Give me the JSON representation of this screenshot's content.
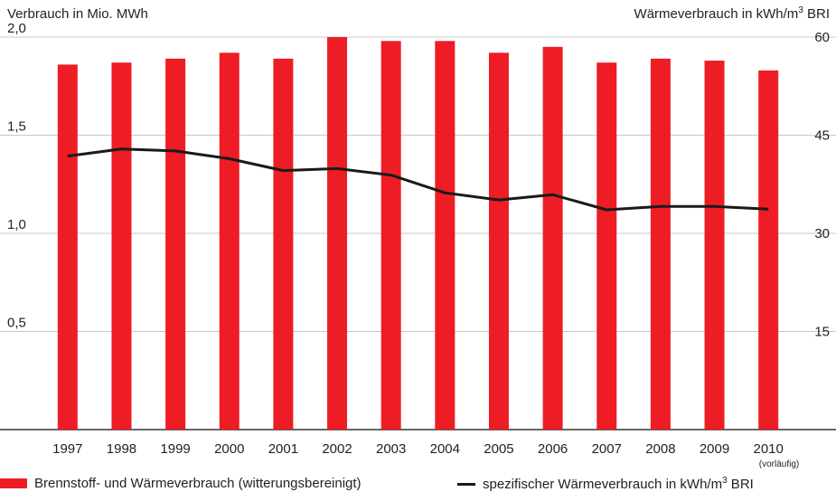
{
  "chart_data": {
    "type": "bar+line",
    "left_axis_title": "Verbrauch in Mio. MWh",
    "right_axis_title_main": "Wärmeverbrauch in kWh/m",
    "right_axis_title_sup": "3",
    "right_axis_title_end": " BRI",
    "categories": [
      "1997",
      "1998",
      "1999",
      "2000",
      "2001",
      "2002",
      "2003",
      "2004",
      "2005",
      "2006",
      "2007",
      "2008",
      "2009",
      "2010"
    ],
    "last_category_note": "(vorläufig)",
    "left_ylim": [
      0,
      2.0
    ],
    "right_ylim": [
      0,
      60
    ],
    "left_ticks": [
      {
        "v": 0.5,
        "label": "0,5"
      },
      {
        "v": 1.0,
        "label": "1,0"
      },
      {
        "v": 1.5,
        "label": "1,5"
      },
      {
        "v": 2.0,
        "label": "2,0"
      }
    ],
    "right_ticks": [
      {
        "v": 15,
        "label": "15"
      },
      {
        "v": 30,
        "label": "30"
      },
      {
        "v": 45,
        "label": "45"
      },
      {
        "v": 60,
        "label": "60"
      }
    ],
    "grid": true,
    "series": [
      {
        "name": "Brennstoff- und Wärmeverbrauch (witterungsbereinigt)",
        "type": "bar",
        "axis": "left",
        "color": "#ee1c25",
        "values": [
          1.86,
          1.87,
          1.89,
          1.92,
          1.89,
          2.0,
          1.98,
          1.98,
          1.92,
          1.95,
          1.87,
          1.89,
          1.88,
          1.83
        ]
      },
      {
        "name": "spezifischer Wärmeverbrauch in kWh/m",
        "name_sup": "3",
        "name_end": " BRI",
        "type": "line",
        "axis": "right",
        "color": "#1a1a1a",
        "values": [
          41.8,
          42.9,
          42.6,
          41.4,
          39.6,
          39.9,
          38.9,
          36.2,
          35.1,
          35.9,
          33.6,
          34.1,
          34.1,
          33.7
        ]
      }
    ],
    "legend_position": "bottom"
  }
}
